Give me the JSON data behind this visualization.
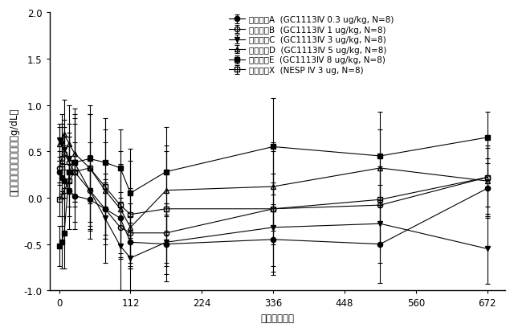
{
  "title": "",
  "xlabel": "時間（ｈｒ）",
  "ylabel": "ヘモグロビン平均変化（g/dL）",
  "xlim": [
    -15,
    700
  ],
  "ylim": [
    -1.0,
    2.0
  ],
  "yticks": [
    -1.0,
    -0.5,
    0.0,
    0.5,
    1.0,
    1.5,
    2.0
  ],
  "xticks": [
    0,
    112,
    224,
    336,
    448,
    560,
    672
  ],
  "groups": {
    "A": {
      "label": "グループA  (GC1113Ⅳ 0.3 ug/kg, N=8)",
      "marker": "o",
      "fillstyle": "full",
      "x": [
        0,
        4,
        8,
        16,
        24,
        48,
        72,
        96,
        112,
        168,
        336,
        504,
        672
      ],
      "y": [
        0.28,
        0.22,
        0.18,
        0.08,
        0.02,
        -0.02,
        -0.12,
        -0.22,
        -0.48,
        -0.5,
        -0.45,
        -0.5,
        0.1
      ],
      "yerr": [
        0.12,
        0.15,
        0.18,
        0.28,
        0.28,
        0.32,
        0.28,
        0.28,
        0.28,
        0.32,
        0.38,
        0.42,
        0.32
      ]
    },
    "B": {
      "label": "グループB  (GC1113Ⅳ 1 ug/kg, N=8)",
      "marker": "o",
      "fillstyle": "none",
      "x": [
        0,
        4,
        8,
        16,
        24,
        48,
        72,
        96,
        112,
        168,
        336,
        504,
        672
      ],
      "y": [
        0.32,
        0.42,
        0.48,
        0.38,
        0.28,
        0.08,
        -0.12,
        -0.32,
        -0.38,
        -0.38,
        -0.12,
        -0.08,
        0.22
      ],
      "yerr": [
        0.18,
        0.22,
        0.28,
        0.28,
        0.32,
        0.38,
        0.32,
        0.32,
        0.32,
        0.32,
        0.38,
        0.42,
        0.32
      ]
    },
    "C": {
      "label": "グループC  (GC1113Ⅳ 3 ug/kg, N=8)",
      "marker": "v",
      "fillstyle": "full",
      "x": [
        0,
        4,
        8,
        16,
        24,
        48,
        72,
        96,
        112,
        168,
        336,
        504,
        672
      ],
      "y": [
        0.62,
        0.58,
        0.52,
        0.42,
        0.38,
        0.08,
        -0.22,
        -0.52,
        -0.65,
        -0.48,
        -0.32,
        -0.28,
        -0.55
      ],
      "yerr": [
        0.18,
        0.22,
        0.32,
        0.38,
        0.48,
        0.52,
        0.48,
        0.48,
        0.38,
        0.42,
        0.48,
        0.42,
        0.38
      ]
    },
    "D": {
      "label": "グループD  (GC1113Ⅳ 5 ug/kg, N=8)",
      "marker": "^",
      "fillstyle": "none",
      "x": [
        0,
        4,
        8,
        16,
        24,
        48,
        72,
        96,
        112,
        168,
        336,
        504,
        672
      ],
      "y": [
        0.58,
        0.62,
        0.68,
        0.58,
        0.48,
        0.32,
        0.08,
        -0.12,
        -0.32,
        0.08,
        0.12,
        0.32,
        0.18
      ],
      "yerr": [
        0.18,
        0.28,
        0.38,
        0.42,
        0.48,
        0.58,
        0.52,
        0.48,
        0.42,
        0.48,
        0.48,
        0.42,
        0.38
      ]
    },
    "E": {
      "label": "グループE  (GC1113Ⅳ 8 ug/kg, N=8)",
      "marker": "s",
      "fillstyle": "full",
      "x": [
        0,
        4,
        8,
        16,
        24,
        48,
        72,
        96,
        112,
        168,
        336,
        504,
        672
      ],
      "y": [
        -0.52,
        -0.48,
        -0.38,
        0.28,
        0.38,
        0.42,
        0.38,
        0.32,
        0.05,
        0.28,
        0.55,
        0.45,
        0.65
      ],
      "yerr": [
        0.22,
        0.28,
        0.38,
        0.38,
        0.42,
        0.48,
        0.48,
        0.42,
        0.48,
        0.48,
        0.52,
        0.48,
        0.28
      ]
    },
    "X": {
      "label": "グループX  (NESP Ⅳ 3 ug, N=8)",
      "marker": "s",
      "fillstyle": "none",
      "x": [
        0,
        4,
        8,
        16,
        24,
        48,
        72,
        96,
        112,
        168,
        336,
        504,
        672
      ],
      "y": [
        -0.02,
        0.02,
        0.08,
        0.18,
        0.28,
        0.32,
        0.12,
        -0.08,
        -0.18,
        -0.12,
        -0.12,
        -0.02,
        0.22
      ],
      "yerr": [
        0.18,
        0.32,
        0.48,
        0.52,
        0.62,
        0.68,
        0.62,
        0.58,
        0.58,
        0.62,
        0.62,
        0.48,
        0.42
      ]
    }
  },
  "background_color": "#ffffff",
  "fontsize": 8.5,
  "legend_fontsize": 7.5,
  "tick_fontsize": 8.5
}
